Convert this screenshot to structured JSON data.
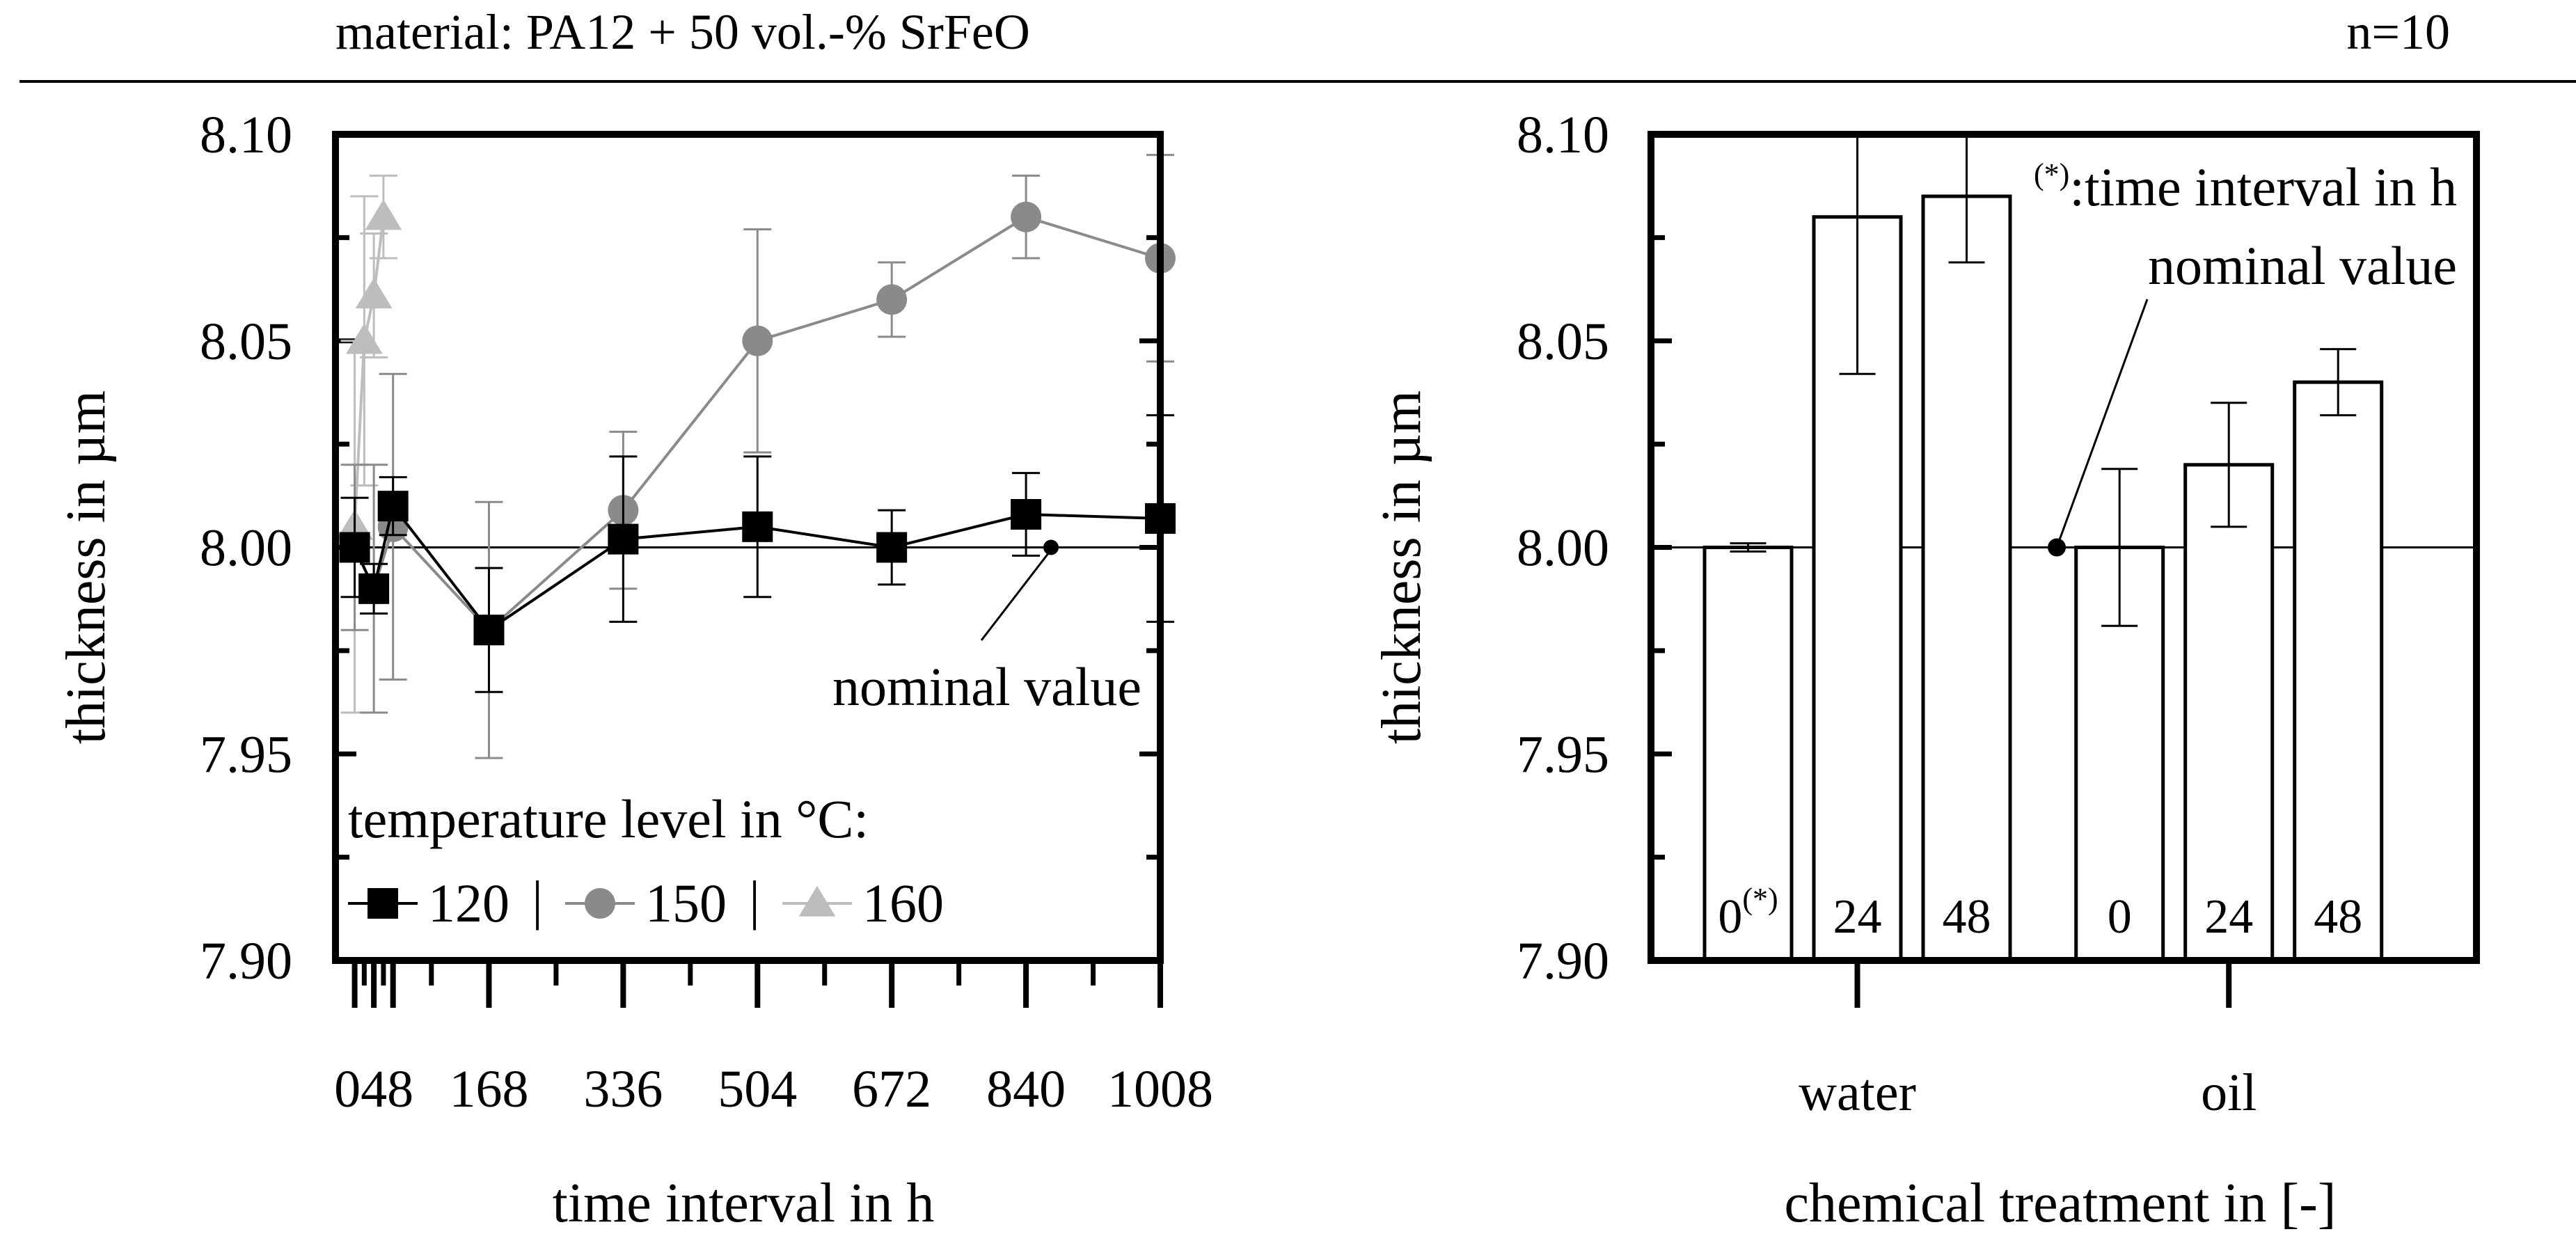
{
  "header": {
    "material_label": "material: PA12 + 50 vol.-% SrFeO",
    "sample_size_label": "n=10"
  },
  "chart_data": [
    {
      "type": "line",
      "panel": "left",
      "xlabel": "time interval in h",
      "ylabel": "thickness in µm",
      "xlim": [
        -24,
        1008
      ],
      "ylim": [
        7.9,
        8.1
      ],
      "y_ticks": [
        "8.10",
        "8.05",
        "8.00",
        "7.95",
        "7.90"
      ],
      "y_tick_values": [
        8.1,
        8.05,
        8.0,
        7.95,
        7.9
      ],
      "x_tick_labels": [
        "048",
        "168",
        "336",
        "504",
        "672",
        "840",
        "1008"
      ],
      "x_tick_label_values": [
        24,
        168,
        336,
        504,
        672,
        840,
        1008
      ],
      "x_major_ticks": [
        0,
        24,
        48,
        168,
        336,
        504,
        672,
        840,
        1008
      ],
      "x_minor_ticks": [
        12,
        36,
        96,
        252,
        420,
        588,
        756,
        924
      ],
      "reference_line": {
        "y": 8.0,
        "label": "nominal value"
      },
      "legend_title": "temperature level in °C:",
      "legend_separator": "|",
      "legend_position": "bottom-left",
      "series": [
        {
          "name": "120",
          "color": "#000000",
          "marker": "square",
          "x": [
            0,
            24,
            48,
            168,
            336,
            504,
            672,
            840,
            1008
          ],
          "values": [
            8.0,
            7.99,
            8.01,
            7.98,
            8.002,
            8.005,
            8.0,
            8.008,
            8.007
          ],
          "errors": [
            0.012,
            0.006,
            0.007,
            0.015,
            0.02,
            0.017,
            0.009,
            0.01,
            0.025
          ]
        },
        {
          "name": "150",
          "color": "#8a8a8a",
          "marker": "circle",
          "x": [
            0,
            24,
            48,
            168,
            336,
            504,
            672,
            840,
            1008
          ],
          "values": [
            8.0,
            7.99,
            8.005,
            7.98,
            8.009,
            8.05,
            8.06,
            8.08,
            8.07
          ],
          "errors": [
            0.02,
            0.03,
            0.037,
            0.031,
            0.019,
            0.027,
            0.009,
            0.01,
            0.025
          ]
        },
        {
          "name": "160",
          "color": "#bdbdbd",
          "marker": "triangle",
          "x": [
            0,
            12,
            24,
            36
          ],
          "values": [
            8.005,
            8.05,
            8.061,
            8.08
          ],
          "errors": [
            0.045,
            0.035,
            0.015,
            0.01
          ]
        }
      ]
    },
    {
      "type": "bar",
      "panel": "right",
      "xlabel": "chemical treatment in [-]",
      "ylabel": "thickness in µm",
      "ylim": [
        7.9,
        8.1
      ],
      "y_ticks": [
        "8.10",
        "8.05",
        "8.00",
        "7.95",
        "7.90"
      ],
      "y_tick_values": [
        8.1,
        8.05,
        8.0,
        7.95,
        7.9
      ],
      "groups": [
        "water",
        "oil"
      ],
      "reference_line": {
        "y": 8.0,
        "label": "nominal value"
      },
      "annotation": {
        "symbol": "(*)",
        "text": ":time interval in h"
      },
      "bars": [
        {
          "group": "water",
          "label": "0",
          "label_sup": "(*)",
          "value": 8.0,
          "error": 0.001
        },
        {
          "group": "water",
          "label": "24",
          "label_sup": "",
          "value": 8.08,
          "error": 0.038
        },
        {
          "group": "water",
          "label": "48",
          "label_sup": "",
          "value": 8.085,
          "error": 0.016
        },
        {
          "group": "oil",
          "label": "0",
          "label_sup": "",
          "value": 8.0,
          "error": 0.019
        },
        {
          "group": "oil",
          "label": "24",
          "label_sup": "",
          "value": 8.02,
          "error": 0.015
        },
        {
          "group": "oil",
          "label": "48",
          "label_sup": "",
          "value": 8.04,
          "error": 0.008
        }
      ]
    }
  ]
}
